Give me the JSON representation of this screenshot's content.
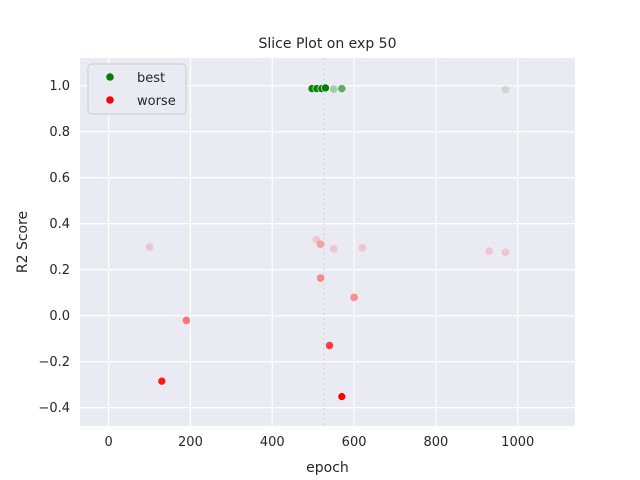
{
  "chart_data": {
    "type": "scatter",
    "title": "Slice Plot on exp 50",
    "xlabel": "epoch",
    "ylabel": "R2 Score",
    "xlim": [
      -70,
      1140
    ],
    "ylim": [
      -0.48,
      1.12
    ],
    "xticks": [
      0,
      200,
      400,
      600,
      800,
      1000
    ],
    "yticks": [
      -0.4,
      -0.2,
      0.0,
      0.2,
      0.4,
      0.6,
      0.8,
      1.0
    ],
    "yticks_format": "signed_decimal_1",
    "grid": true,
    "background": "#eaeaf2",
    "legend_position": "top-left",
    "reference_line": {
      "x": 526,
      "color": "#d0d0d8"
    },
    "legend": [
      {
        "label": "best",
        "color": "#008000"
      },
      {
        "label": "worse",
        "color": "#ff0000"
      }
    ],
    "series": [
      {
        "name": "best",
        "color": "#008000",
        "points": [
          {
            "x": 497,
            "y": 0.987,
            "alpha": 0.95
          },
          {
            "x": 509,
            "y": 0.987,
            "alpha": 0.95
          },
          {
            "x": 521,
            "y": 0.987,
            "alpha": 0.95
          },
          {
            "x": 530,
            "y": 0.99,
            "alpha": 1.0
          },
          {
            "x": 550,
            "y": 0.985,
            "alpha": 0.3
          },
          {
            "x": 570,
            "y": 0.987,
            "alpha": 0.6
          },
          {
            "x": 970,
            "y": 0.983,
            "alpha": 0.15
          }
        ]
      },
      {
        "name": "worse",
        "color": "#ff0000",
        "points": [
          {
            "x": 100,
            "y": 0.298,
            "alpha": 0.15
          },
          {
            "x": 508,
            "y": 0.33,
            "alpha": 0.15
          },
          {
            "x": 518,
            "y": 0.31,
            "alpha": 0.3
          },
          {
            "x": 550,
            "y": 0.29,
            "alpha": 0.15
          },
          {
            "x": 620,
            "y": 0.295,
            "alpha": 0.15
          },
          {
            "x": 930,
            "y": 0.28,
            "alpha": 0.15
          },
          {
            "x": 970,
            "y": 0.275,
            "alpha": 0.15
          },
          {
            "x": 518,
            "y": 0.163,
            "alpha": 0.4
          },
          {
            "x": 600,
            "y": 0.079,
            "alpha": 0.4
          },
          {
            "x": 190,
            "y": -0.021,
            "alpha": 0.5
          },
          {
            "x": 540,
            "y": -0.13,
            "alpha": 0.75
          },
          {
            "x": 130,
            "y": -0.285,
            "alpha": 0.9
          },
          {
            "x": 570,
            "y": -0.352,
            "alpha": 1.0
          }
        ]
      }
    ]
  }
}
